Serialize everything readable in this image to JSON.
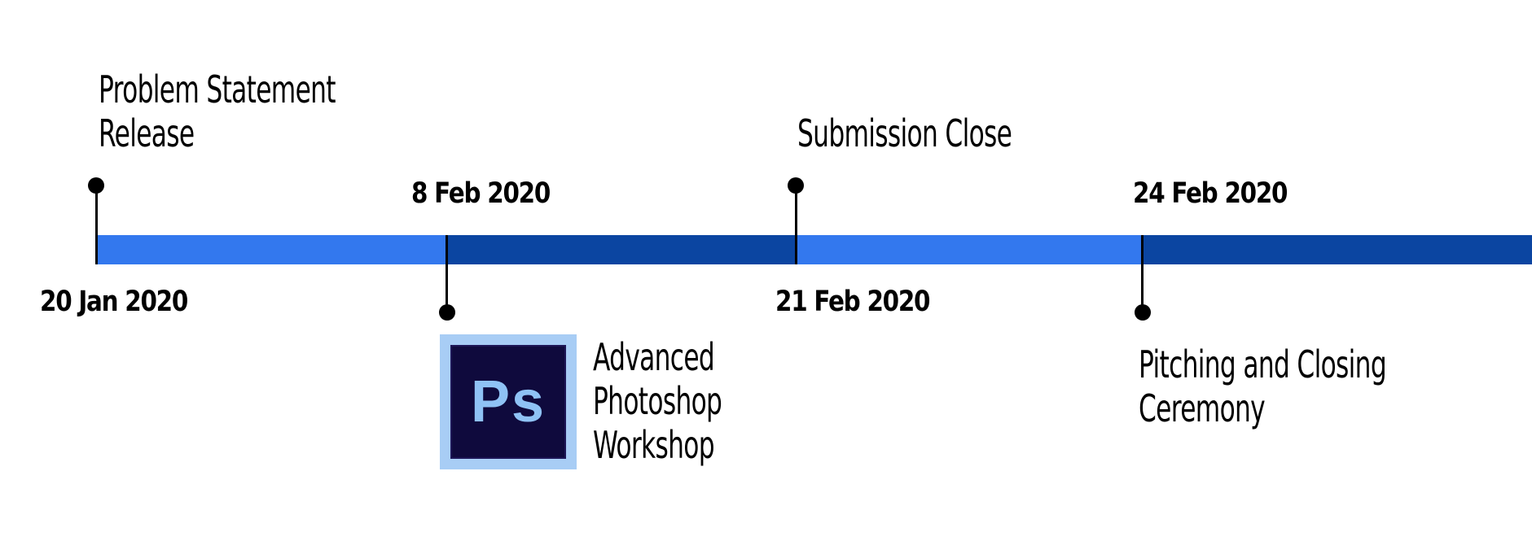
{
  "timeline": {
    "segment_colors": [
      "#3378ee",
      "#0b45a1",
      "#3378ee",
      "#0b45a1"
    ],
    "milestones": [
      {
        "date": "20 Jan 2020",
        "event_lines": [
          "Problem Statement",
          "Release"
        ],
        "side": "above"
      },
      {
        "date": "8 Feb 2020",
        "event_lines": [
          "Advanced",
          "Photoshop",
          "Workshop"
        ],
        "side": "below",
        "icon": "photoshop-logo-icon"
      },
      {
        "date": "21 Feb 2020",
        "event_lines": [
          "Submission Close"
        ],
        "side": "above"
      },
      {
        "date": "24 Feb 2020",
        "event_lines": [
          "Pitching and Closing",
          "Ceremony"
        ],
        "side": "below"
      }
    ]
  },
  "photoshop_logo": {
    "text": "Ps",
    "colors": {
      "frame": "#a8cdf5",
      "background": "#0f0a3d",
      "text": "#8fc2f5"
    }
  }
}
